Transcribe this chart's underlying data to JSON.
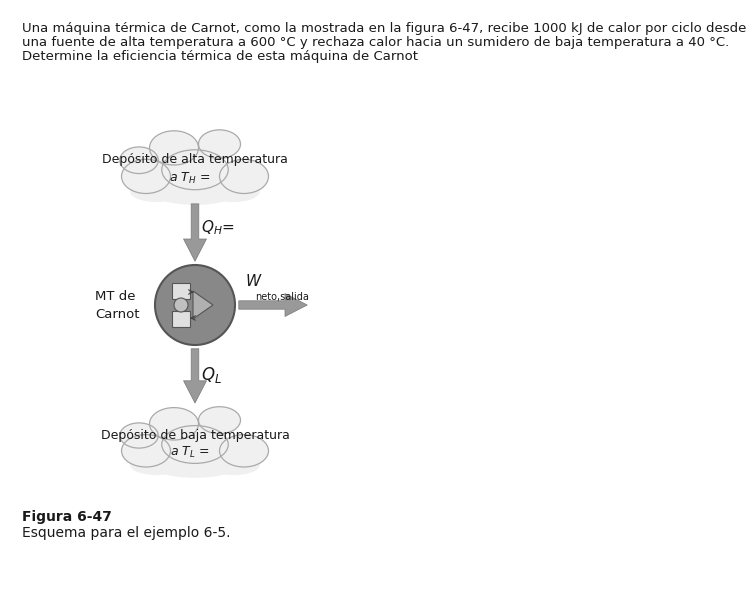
{
  "background_color": "#ffffff",
  "text_color": "#1a1a1a",
  "title_lines": [
    "Una máquina térmica de Carnot, como la mostrada en la figura 6-47, recibe 1000 kJ de calor por ciclo desde",
    "una fuente de alta temperatura a 600 °C y rechaza calor hacia un sumidero de baja temperatura a 40 °C.",
    "Determine la eficiencia térmica de esta máquina de Carnot"
  ],
  "title_fontsize": 9.5,
  "cloud_top_label_1": "Depósito de alta temperatura",
  "cloud_top_label_2": "a $T_H$ =",
  "cloud_bot_label_1": "Depósito de baja temperatura",
  "cloud_bot_label_2": "a $T_L$ =",
  "QH_label": "$Q_{H}$=",
  "QL_label": "$Q_L$",
  "MT_label": "MT de\nCarnot",
  "W_main": "$W$",
  "W_sub": "neto,salida",
  "fig_caption_1": "Figura 6-47",
  "fig_caption_2": "Esquema para el ejemplo 6-5.",
  "caption_fontsize": 10,
  "cloud_fill": "#f0f0f0",
  "cloud_edge": "#aaaaaa",
  "engine_fill": "#888888",
  "engine_edge": "#555555",
  "arrow_fill": "#999999",
  "arrow_edge": "#777777",
  "rect_fill": "#e0e0e0",
  "rect_edge": "#555555"
}
